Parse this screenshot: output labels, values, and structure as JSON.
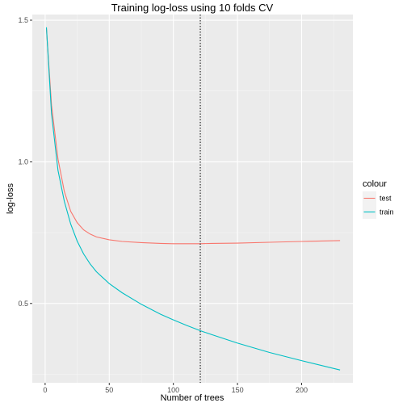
{
  "chart_data": {
    "type": "line",
    "title": "Training log-loss using 10 folds CV",
    "xlabel": "Number of trees",
    "ylabel": "log-loss",
    "xlim": [
      -10,
      240
    ],
    "ylim": [
      0.22,
      1.52
    ],
    "xticks": [
      0,
      50,
      100,
      150,
      200
    ],
    "yticks": [
      0.5,
      1.0,
      1.5
    ],
    "ytick_labels": [
      "0.5",
      "1.0",
      "1.5"
    ],
    "grid": true,
    "legend": {
      "title": "colour",
      "placement": "right"
    },
    "vline": {
      "x": 121,
      "style": "dotted",
      "color": "#000000"
    },
    "series": [
      {
        "name": "test",
        "color": "#F8766D",
        "x": [
          1,
          5,
          10,
          15,
          20,
          25,
          30,
          35,
          40,
          50,
          60,
          75,
          90,
          100,
          110,
          121,
          130,
          150,
          175,
          200,
          230
        ],
        "y": [
          1.47,
          1.2,
          1.01,
          0.895,
          0.825,
          0.785,
          0.76,
          0.745,
          0.735,
          0.725,
          0.719,
          0.715,
          0.712,
          0.711,
          0.711,
          0.711,
          0.712,
          0.713,
          0.716,
          0.719,
          0.722
        ]
      },
      {
        "name": "train",
        "color": "#00BFC4",
        "x": [
          1,
          5,
          10,
          15,
          20,
          25,
          30,
          35,
          40,
          50,
          60,
          75,
          90,
          100,
          110,
          121,
          130,
          150,
          175,
          200,
          230
        ],
        "y": [
          1.475,
          1.17,
          0.97,
          0.86,
          0.78,
          0.72,
          0.675,
          0.64,
          0.612,
          0.57,
          0.538,
          0.497,
          0.462,
          0.442,
          0.423,
          0.404,
          0.39,
          0.36,
          0.327,
          0.298,
          0.265
        ]
      }
    ]
  }
}
